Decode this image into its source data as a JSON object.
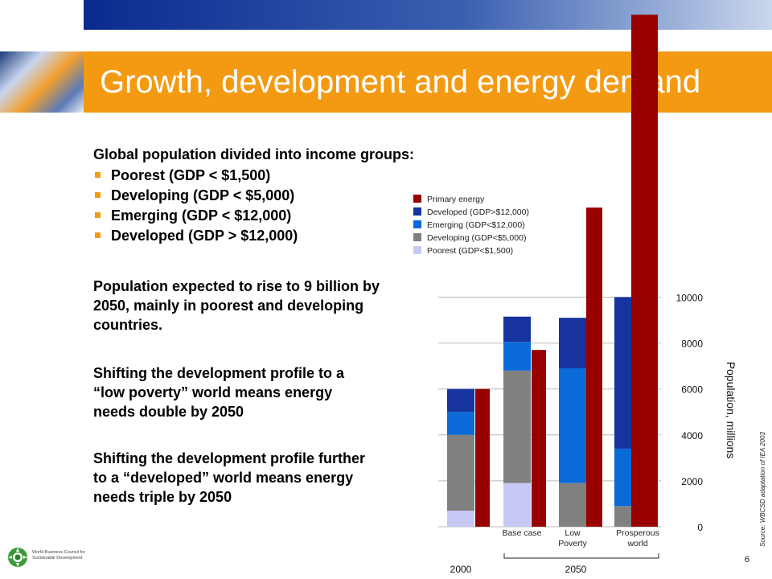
{
  "slide": {
    "title": "Growth, development and energy demand",
    "heading": "Global population divided into income groups:",
    "bullets": [
      "Poorest (GDP < $1,500)",
      "Developing (GDP < $5,000)",
      "Emerging (GDP < $12,000)",
      "Developed (GDP > $12,000)"
    ],
    "paragraphs": [
      "Population expected to rise to 9 billion by 2050, mainly in poorest and developing countries.",
      "Shifting the development profile to a “low poverty” world means energy needs double by 2050",
      "Shifting the development profile further to a “developed” world means energy needs triple by 2050"
    ],
    "source": "Source: WBCSD adaptation of IEA 2003",
    "page_number": "6",
    "logo_text": "World Business Council for Sustainable Development",
    "accent_color": "#f39a12"
  },
  "chart_data": {
    "type": "bar",
    "ylabel": "Population, millions",
    "ylim": [
      0,
      10000
    ],
    "yticks": [
      0,
      2000,
      4000,
      6000,
      8000,
      10000
    ],
    "categories": [
      "",
      "Base case",
      "Low Poverty",
      "Prosperous world"
    ],
    "groups": [
      {
        "label": "2000",
        "categories": [
          ""
        ]
      },
      {
        "label": "2050",
        "categories": [
          "Base case",
          "Low Poverty",
          "Prosperous world"
        ]
      }
    ],
    "stacked_series": [
      {
        "name": "Poorest (GDP<$1,500)",
        "color": "#c8c8f4",
        "values": [
          700,
          1900,
          0,
          0
        ]
      },
      {
        "name": "Developing (GDP<$5,000)",
        "color": "#808080",
        "values": [
          3300,
          4900,
          1900,
          900
        ]
      },
      {
        "name": "Emerging (GDP<$12,000)",
        "color": "#0a6ad8",
        "values": [
          1000,
          1250,
          5000,
          2500
        ]
      },
      {
        "name": "Developed (GDP>$12,000)",
        "color": "#16339e",
        "values": [
          1000,
          1100,
          2200,
          6600
        ]
      }
    ],
    "primary_energy": {
      "name": "Primary energy",
      "color": "#990000",
      "values": [
        6000,
        7700,
        13900,
        22300
      ]
    },
    "legend_order": [
      {
        "name": "Primary energy",
        "color": "#990000"
      },
      {
        "name": "Developed (GDP>$12,000)",
        "color": "#16339e"
      },
      {
        "name": "Emerging (GDP<$12,000)",
        "color": "#0a6ad8"
      },
      {
        "name": "Developing (GDP<$5,000)",
        "color": "#808080"
      },
      {
        "name": "Poorest (GDP<$1,500)",
        "color": "#c8c8f4"
      }
    ],
    "legend_position": "top-left",
    "grid": true
  }
}
